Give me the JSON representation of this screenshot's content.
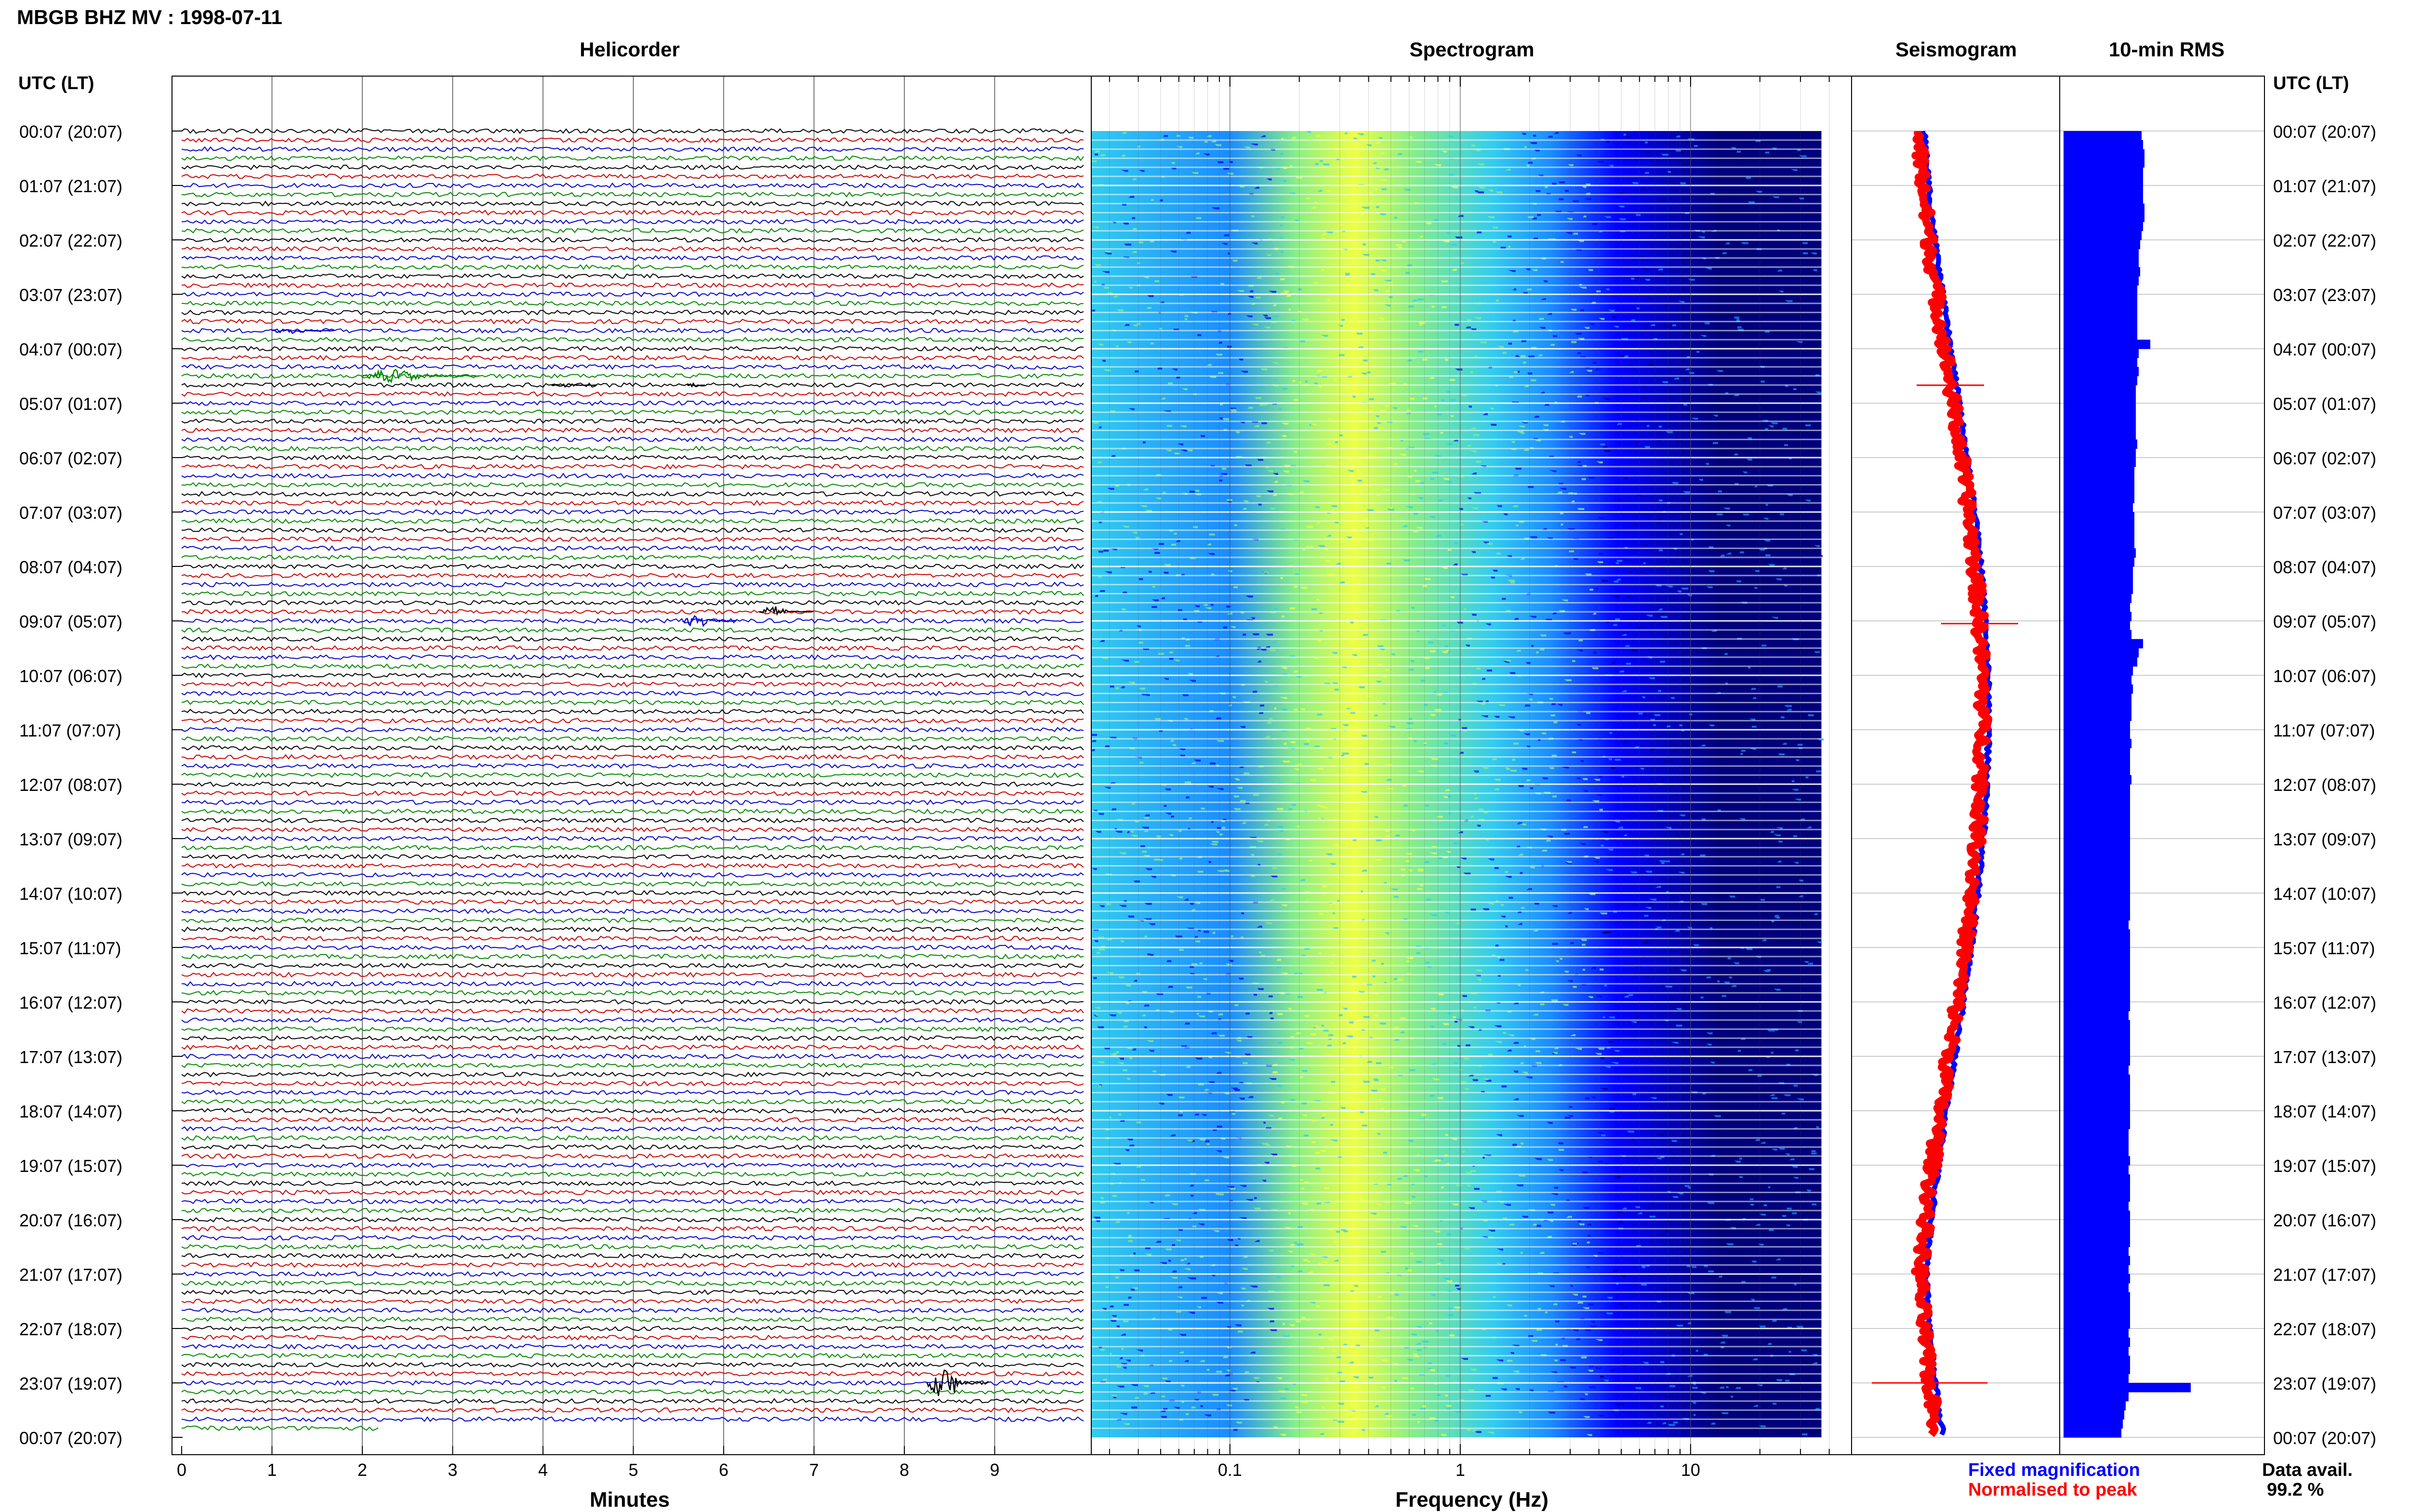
{
  "page_title": "MBGB BHZ MV : 1998-07-11",
  "chart_data": [
    {
      "type": "line",
      "panel": "helicorder",
      "title": "Helicorder",
      "xlabel": "Minutes",
      "xlim": [
        0,
        10
      ],
      "x_ticks": [
        "0",
        "1",
        "2",
        "3",
        "4",
        "5",
        "6",
        "7",
        "8",
        "9"
      ],
      "row_label_header": "UTC (LT)",
      "row_labels": [
        "00:07 (20:07)",
        "01:07 (21:07)",
        "02:07 (22:07)",
        "03:07 (23:07)",
        "04:07 (00:07)",
        "05:07 (01:07)",
        "06:07 (02:07)",
        "07:07 (03:07)",
        "08:07 (04:07)",
        "09:07 (05:07)",
        "10:07 (06:07)",
        "11:07 (07:07)",
        "12:07 (08:07)",
        "13:07 (09:07)",
        "14:07 (10:07)",
        "15:07 (11:07)",
        "16:07 (12:07)",
        "17:07 (13:07)",
        "18:07 (14:07)",
        "19:07 (15:07)",
        "20:07 (16:07)",
        "21:07 (17:07)",
        "22:07 (18:07)",
        "23:07 (19:07)",
        "00:07 (20:07)"
      ],
      "trace_colors": [
        "#000000",
        "#cc0000",
        "#0000cc",
        "#008800"
      ],
      "traces_per_hour": 6,
      "events": [
        {
          "hour": 3.67,
          "minute": 1.0,
          "length": 0.7,
          "color": "#0000cc",
          "size": 0.5
        },
        {
          "hour": 4.5,
          "minute": 2.0,
          "length": 1.3,
          "color": "#008800",
          "size": 1.0
        },
        {
          "hour": 4.67,
          "minute": 4.1,
          "length": 0.5,
          "color": "#000000",
          "size": 0.35
        },
        {
          "hour": 4.67,
          "minute": 5.6,
          "length": 0.2,
          "color": "#000000",
          "size": 0.3
        },
        {
          "hour": 8.83,
          "minute": 6.4,
          "length": 0.6,
          "color": "#000000",
          "size": 0.8
        },
        {
          "hour": 9.0,
          "minute": 5.55,
          "length": 0.6,
          "color": "#0000cc",
          "size": 1.0
        },
        {
          "hour": 23.0,
          "minute": 8.25,
          "length": 0.7,
          "color": "#000000",
          "size": 2.5
        }
      ]
    },
    {
      "type": "heatmap",
      "panel": "spectrogram",
      "title": "Spectrogram",
      "xlabel": "Frequency (Hz)",
      "x_scale": "log",
      "xlim": [
        0.025,
        50
      ],
      "x_ticks": [
        "0.1",
        "1",
        "10"
      ],
      "data_end_hz": 37,
      "colormap": [
        "#00007a",
        "#0000ff",
        "#1a8cff",
        "#33ccee",
        "#88ee88",
        "#eeff44"
      ]
    },
    {
      "type": "line",
      "panel": "seismogram",
      "title": "Seismogram",
      "legend": [
        "Fixed magnification",
        "Normalised to peak"
      ],
      "series_colors": [
        "#0000ff",
        "#ff0000"
      ]
    },
    {
      "type": "bar",
      "panel": "rms",
      "title": "10-min RMS",
      "orientation": "horizontal",
      "bar_color": "#0000ff",
      "values": [
        54,
        55,
        56,
        56,
        55,
        55,
        55,
        55,
        56,
        56,
        55,
        54,
        53,
        52,
        52,
        53,
        52,
        51,
        51,
        51,
        51,
        51,
        51,
        60,
        52,
        51,
        52,
        51,
        50,
        50,
        50,
        50,
        50,
        50,
        51,
        50,
        50,
        49,
        49,
        49,
        49,
        48,
        49,
        49,
        49,
        49,
        50,
        49,
        48,
        48,
        48,
        47,
        46,
        47,
        46,
        47,
        55,
        52,
        51,
        48,
        47,
        48,
        47,
        47,
        47,
        46,
        46,
        47,
        46,
        46,
        46,
        47,
        46,
        46,
        46,
        46,
        46,
        46,
        46,
        46,
        46,
        46,
        46,
        46,
        46,
        46,
        46,
        45,
        46,
        46,
        46,
        46,
        46,
        46,
        46,
        46,
        46,
        45,
        46,
        46,
        46,
        46,
        46,
        45,
        46,
        46,
        46,
        46,
        46,
        46,
        45,
        45,
        45,
        46,
        45,
        46,
        46,
        46,
        45,
        46,
        46,
        46,
        46,
        45,
        46,
        45,
        46,
        45,
        46,
        46,
        46,
        46,
        45,
        46,
        45,
        46,
        46,
        45,
        88,
        45,
        43,
        42,
        41,
        40
      ]
    }
  ],
  "footer": {
    "legend_fixed": "Fixed magnification",
    "legend_norm": "Normalised to peak",
    "data_avail_label": "Data avail.",
    "data_avail_value": "99.2 %"
  }
}
